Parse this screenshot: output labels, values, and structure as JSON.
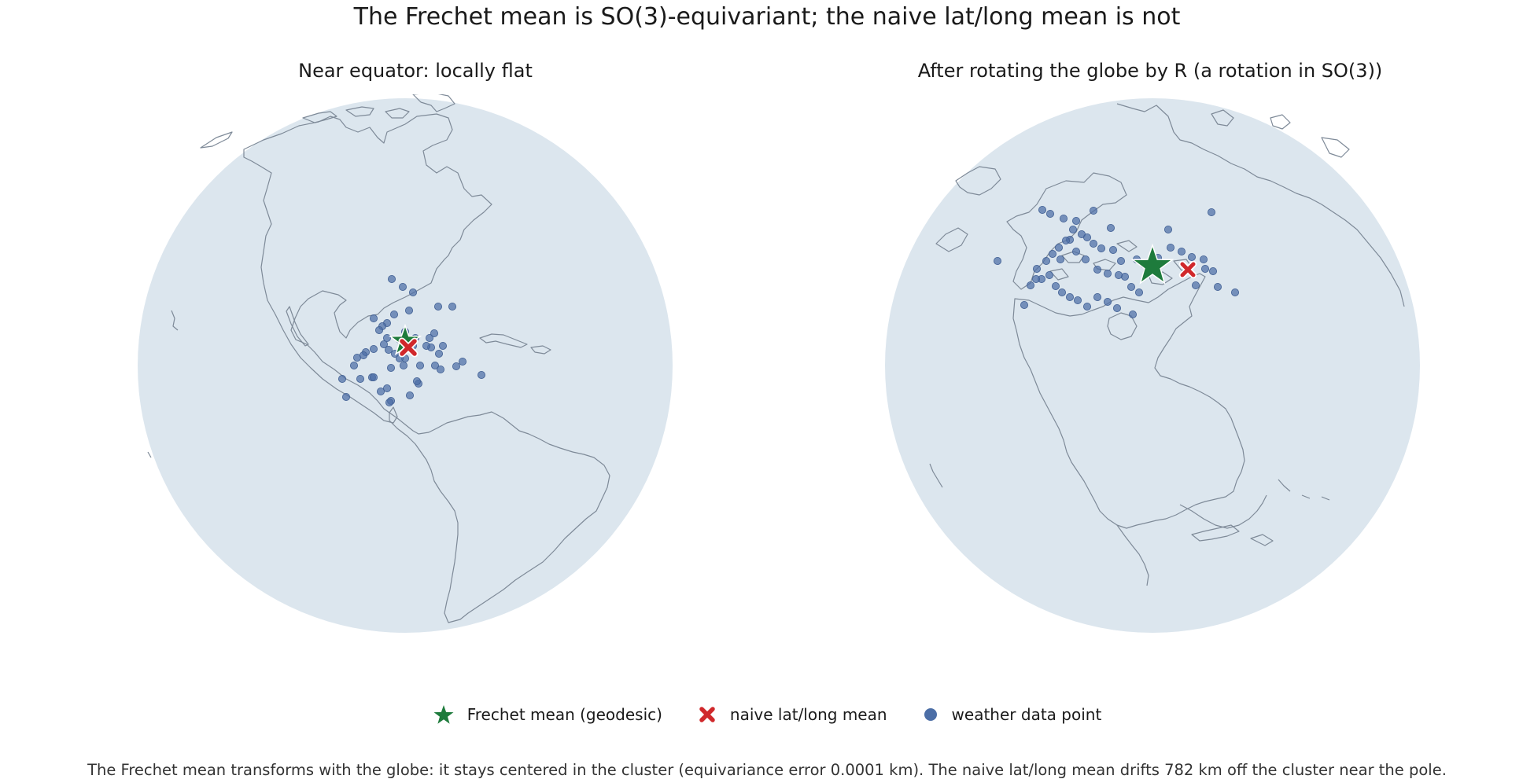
{
  "figure": {
    "title": "The Frechet mean is SO(3)-equivariant; the naive lat/long mean is not",
    "caption": "The Frechet mean transforms with the globe: it stays centered in the cluster (equivariance error 0.0001 km). The naive lat/long mean drifts 782 km off the cluster near the pole."
  },
  "panels": [
    {
      "title": "Near equator: locally flat",
      "view": "orthographic globe centered on the Americas"
    },
    {
      "title": "After rotating the globe by R (a rotation in SO(3))",
      "view": "orthographic globe centered on the Arctic / North America"
    }
  ],
  "legend": {
    "frechet": "Frechet mean (geodesic)",
    "naive": "naive lat/long mean",
    "point": "weather data point"
  },
  "colors": {
    "ocean": "#dce6ee",
    "coastline": "#7e8a98",
    "frechet_mean": "#1e7b3c",
    "naive_mean": "#d0282b",
    "data_point": "#4c6ea6"
  },
  "icons": {
    "frechet": "star-icon",
    "naive": "x-cross-icon",
    "point": "dot-icon"
  }
}
